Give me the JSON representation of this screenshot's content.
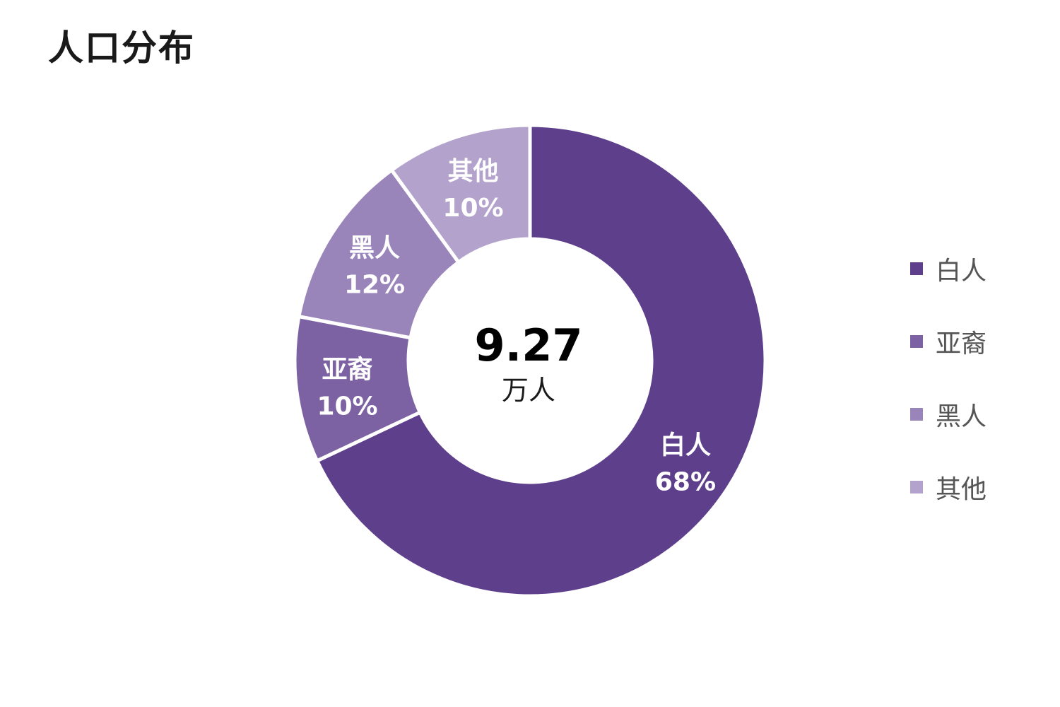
{
  "title": "人口分布",
  "chart_data": {
    "type": "pie",
    "donut": true,
    "title": "人口分布",
    "center": {
      "value": "9.27",
      "unit": "万人"
    },
    "slices": [
      {
        "name": "白人",
        "value": 68,
        "label": "68%",
        "color": "#5e3f8c"
      },
      {
        "name": "亚裔",
        "value": 10,
        "label": "10%",
        "color": "#7c62a3"
      },
      {
        "name": "黑人",
        "value": 12,
        "label": "12%",
        "color": "#9a85bb"
      },
      {
        "name": "其他",
        "value": 10,
        "label": "10%",
        "color": "#b3a2cc"
      }
    ],
    "legend_position": "right"
  }
}
